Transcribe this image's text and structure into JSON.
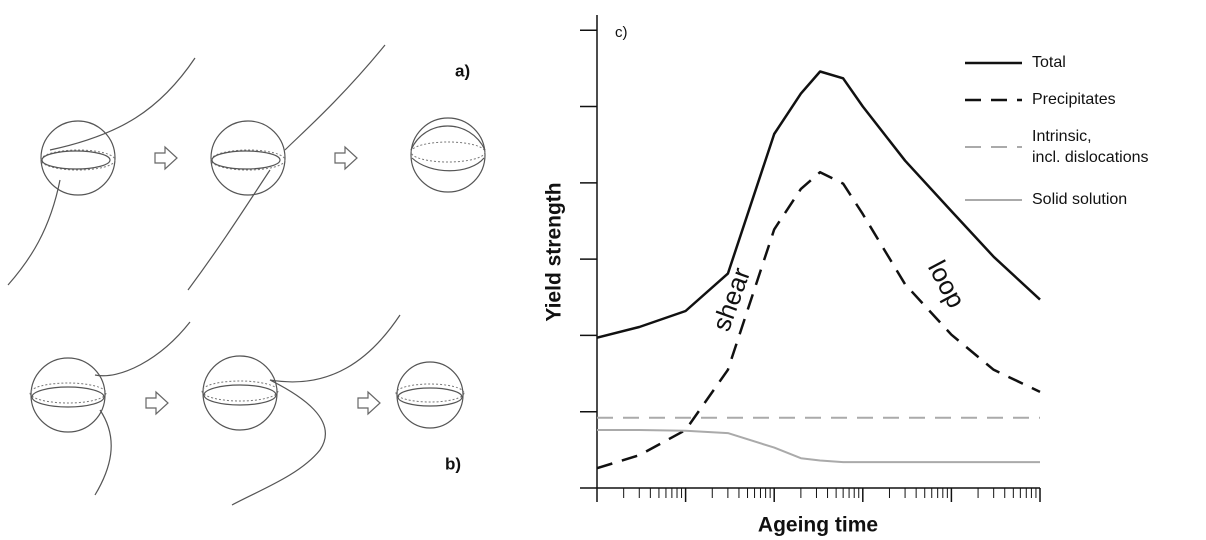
{
  "panels": {
    "a": "a)",
    "b": "b)"
  },
  "chart_data": {
    "type": "line",
    "panel_label": "c)",
    "xlabel": "Ageing time",
    "ylabel": "Yield strength",
    "log_x": true,
    "grid": false,
    "xlim": [
      1,
      100000
    ],
    "xticks": [
      1,
      10,
      100,
      1000,
      10000,
      100000
    ],
    "xminorticks": [
      2,
      3,
      4,
      5,
      6,
      7,
      8,
      9,
      20,
      30,
      40,
      50,
      60,
      70,
      80,
      90,
      200,
      300,
      400,
      500,
      600,
      700,
      800,
      900,
      2000,
      3000,
      4000,
      5000,
      6000,
      7000,
      8000,
      9000,
      20000,
      30000,
      40000,
      50000,
      60000,
      70000,
      80000,
      90000
    ],
    "ylim": [
      0,
      6.2
    ],
    "yticks": [
      0,
      1,
      2,
      3,
      4,
      5,
      6
    ],
    "x": [
      1,
      3,
      10,
      30,
      100,
      200,
      330,
      600,
      1000,
      3000,
      10000,
      30000,
      100000
    ],
    "series": [
      {
        "name": "Total",
        "color": "#111111",
        "line_style": "solid",
        "values": [
          1.97,
          2.11,
          2.32,
          2.81,
          4.64,
          5.17,
          5.46,
          5.37,
          5.0,
          4.29,
          3.63,
          3.03,
          2.47
        ]
      },
      {
        "name": "Precipitates",
        "color": "#111111",
        "line_style": "dashed",
        "values": [
          0.26,
          0.43,
          0.76,
          1.55,
          3.39,
          3.92,
          4.14,
          3.99,
          3.59,
          2.67,
          2.01,
          1.55,
          1.26
        ]
      },
      {
        "name": "Intrinsic,\nincl. dislocations",
        "color": "#aaaaaa",
        "line_style": "dashed",
        "values": [
          0.92,
          0.92,
          0.92,
          0.92,
          0.92,
          0.92,
          0.92,
          0.92,
          0.92,
          0.92,
          0.92,
          0.92,
          0.92
        ]
      },
      {
        "name": "Solid solution",
        "color": "#aaaaaa",
        "line_style": "solid",
        "values": [
          0.76,
          0.76,
          0.75,
          0.72,
          0.53,
          0.39,
          0.36,
          0.34,
          0.34,
          0.34,
          0.34,
          0.34,
          0.34
        ]
      }
    ],
    "annotations": [
      "shear",
      "loop"
    ]
  }
}
